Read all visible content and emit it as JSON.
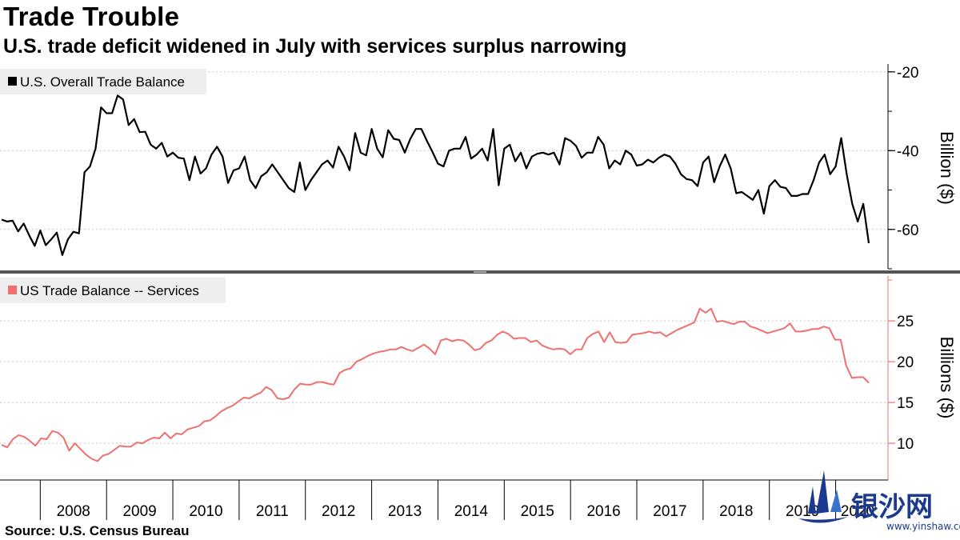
{
  "title": "Trade Trouble",
  "subtitle": "U.S. trade deficit widened in July with services surplus narrowing",
  "source": "Source: U.S. Census Bureau",
  "watermark": {
    "text": "银沙网",
    "url": "www.yinshaw.com"
  },
  "colors": {
    "overall": "#000000",
    "services": "#f07070"
  },
  "chart_data": [
    {
      "type": "line",
      "name": "US Overall Trade Balance",
      "legend": "U.S. Overall Trade Balance",
      "ylabel": "Billion ($)",
      "ylim": [
        -70,
        -18
      ],
      "yticks": [
        -20,
        -40,
        -60
      ],
      "ytick_labels": [
        "-20",
        "-40",
        "-60"
      ],
      "x_start": "2007-06",
      "x_step": "monthly",
      "values": [
        -57.5,
        -58,
        -57.8,
        -60.5,
        -58.5,
        -61.5,
        -64.2,
        -60.3,
        -64,
        -62.5,
        -60.8,
        -66.5,
        -62.5,
        -60.6,
        -61,
        -45.5,
        -44,
        -39.5,
        -29,
        -30.5,
        -30.5,
        -26,
        -27,
        -33.5,
        -32,
        -35.3,
        -35.2,
        -38.5,
        -39.5,
        -38,
        -41.5,
        -40.5,
        -41.8,
        -42,
        -47.5,
        -41.5,
        -45.8,
        -44.5,
        -41,
        -39,
        -41.5,
        -48.2,
        -45,
        -44.5,
        -41.5,
        -47.5,
        -49.5,
        -46.5,
        -45.5,
        -43.5,
        -45.5,
        -47.5,
        -49.5,
        -50.5,
        -43,
        -50,
        -47.5,
        -45.5,
        -43.5,
        -42.5,
        -44.3,
        -39,
        -41.5,
        -45,
        -35.5,
        -40.5,
        -41.2,
        -34.5,
        -39.5,
        -41.7,
        -34.8,
        -37,
        -37.3,
        -40.5,
        -37,
        -34.5,
        -34.5,
        -37.5,
        -40.3,
        -43.3,
        -44,
        -40,
        -39.5,
        -39.5,
        -36.5,
        -42,
        -41,
        -39.5,
        -42.5,
        -34.5,
        -48.8,
        -39.5,
        -38.5,
        -42.7,
        -40.5,
        -44.5,
        -41.5,
        -40.8,
        -40.5,
        -41,
        -40.5,
        -43.5,
        -36.8,
        -37.5,
        -38.8,
        -41.8,
        -40.5,
        -40.5,
        -36.5,
        -38.5,
        -44.5,
        -42.5,
        -43.5,
        -40,
        -41,
        -43.8,
        -43.5,
        -42.3,
        -43,
        -41.8,
        -41,
        -41.5,
        -43.3,
        -46,
        -47.2,
        -47.5,
        -49,
        -43,
        -41.5,
        -48,
        -44,
        -41,
        -44.5,
        -50.8,
        -50.5,
        -51.5,
        -52.5,
        -50,
        -56,
        -49,
        -47.5,
        -49.2,
        -49.5,
        -51.5,
        -51.5,
        -51,
        -51,
        -47.5,
        -43,
        -41,
        -46,
        -44,
        -36.8,
        -46,
        -53.5,
        -58,
        -53.5,
        -63.5
      ]
    },
    {
      "type": "line",
      "name": "US Trade Balance -- Services",
      "legend": "US Trade Balance -- Services",
      "ylabel": "Billions ($)",
      "ylim": [
        5.5,
        30.5
      ],
      "yticks": [
        10,
        15,
        20,
        25
      ],
      "ytick_labels": [
        "10",
        "15",
        "20",
        "25"
      ],
      "x_start": "2007-06",
      "x_step": "monthly",
      "values": [
        9.8,
        9.5,
        10.5,
        11,
        10.8,
        10.3,
        9.7,
        10.6,
        10.5,
        11.5,
        11.3,
        10.7,
        9.1,
        10,
        9.3,
        8.6,
        8.1,
        7.8,
        8.5,
        8.7,
        9.2,
        9.7,
        9.6,
        9.6,
        10.1,
        10,
        10.4,
        10.7,
        10.6,
        11.3,
        10.6,
        11.2,
        11.1,
        11.7,
        11.9,
        12.1,
        12.7,
        12.8,
        13.3,
        13.9,
        14.3,
        14.6,
        15.1,
        15.6,
        15.5,
        15.9,
        16.2,
        16.9,
        16.5,
        15.5,
        15.4,
        15.6,
        16.6,
        17.3,
        17.2,
        17.2,
        17.5,
        17.5,
        17.3,
        17.2,
        18.6,
        19,
        19.2,
        20,
        20.3,
        20.7,
        21,
        21.2,
        21.3,
        21.5,
        21.5,
        21.8,
        21.5,
        21.3,
        21.7,
        22.1,
        21.6,
        20.9,
        22.6,
        22.8,
        22.5,
        22.7,
        22.6,
        22.1,
        21.4,
        21.6,
        22.3,
        22.6,
        23.3,
        23.7,
        23.4,
        22.8,
        22.9,
        22.9,
        22.4,
        22.6,
        22,
        21.7,
        21.5,
        21.6,
        21.5,
        20.9,
        21.5,
        21.5,
        22.9,
        23.4,
        23.7,
        22.4,
        23.6,
        22.4,
        22.3,
        22.4,
        23.3,
        23.4,
        23.5,
        23.7,
        23.5,
        23.6,
        23.1,
        23.5,
        23.9,
        24.2,
        24.5,
        24.8,
        26.5,
        26,
        26.5,
        24.9,
        25,
        24.8,
        24.6,
        24.9,
        24.9,
        24.3,
        24.1,
        23.8,
        23.5,
        23.7,
        23.9,
        24.1,
        24.7,
        23.7,
        23.7,
        23.8,
        24,
        24,
        24.3,
        24.1,
        22.7,
        22.7,
        19.5,
        18,
        18.1,
        18.1,
        17.4
      ]
    }
  ],
  "x_axis": {
    "years": [
      "2008",
      "2009",
      "2010",
      "2011",
      "2012",
      "2013",
      "2014",
      "2015",
      "2016",
      "2017",
      "2018",
      "2019",
      "2020"
    ]
  }
}
